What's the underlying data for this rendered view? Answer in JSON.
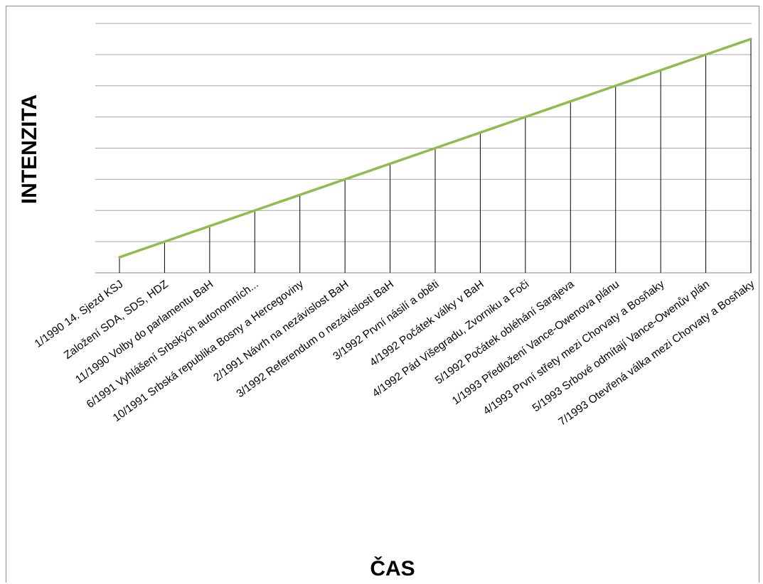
{
  "chart_data": {
    "type": "line",
    "xlabel": "ČAS",
    "ylabel": "INTENZITA",
    "grid": true,
    "ylim": [
      0,
      8
    ],
    "categories": [
      "1/1990 14. Sjezd KSJ",
      "Založení SDA, SDS, HDZ",
      "11/1990 Volby do parlamentu BaH",
      "6/1991 Vyhlášení Srbských autonomních...",
      "10/1991 Srbská republika Bosny a Hercegoviny",
      "2/1991 Návrh na nezávislost BaH",
      "3/1992 Referendum o nezávislosti BaH",
      "3/1992 První násilí a oběti",
      "4/1992 Počátek války v BaH",
      "4/1992 Pád Višegradu, Zvorniku a Foči",
      "5/1992 Počátek obléhání Sarajeva",
      "1/1993 Předložení Vance-Owenova plánu",
      "4/1993 První střety mezi Chorvaty a Bosňaky",
      "5/1993 Srbové odmítají Vance-Owenův plán",
      "7/1993 Otevřená válka mezi Chorvaty a Bosňaky"
    ],
    "series": [
      {
        "color": "#8fbc4c",
        "values": [
          0.5,
          1.0,
          1.5,
          2.0,
          2.5,
          3.0,
          3.5,
          4.0,
          4.5,
          5.0,
          5.5,
          6.0,
          6.5,
          7.0,
          7.5
        ]
      }
    ],
    "drop_lines": true
  }
}
